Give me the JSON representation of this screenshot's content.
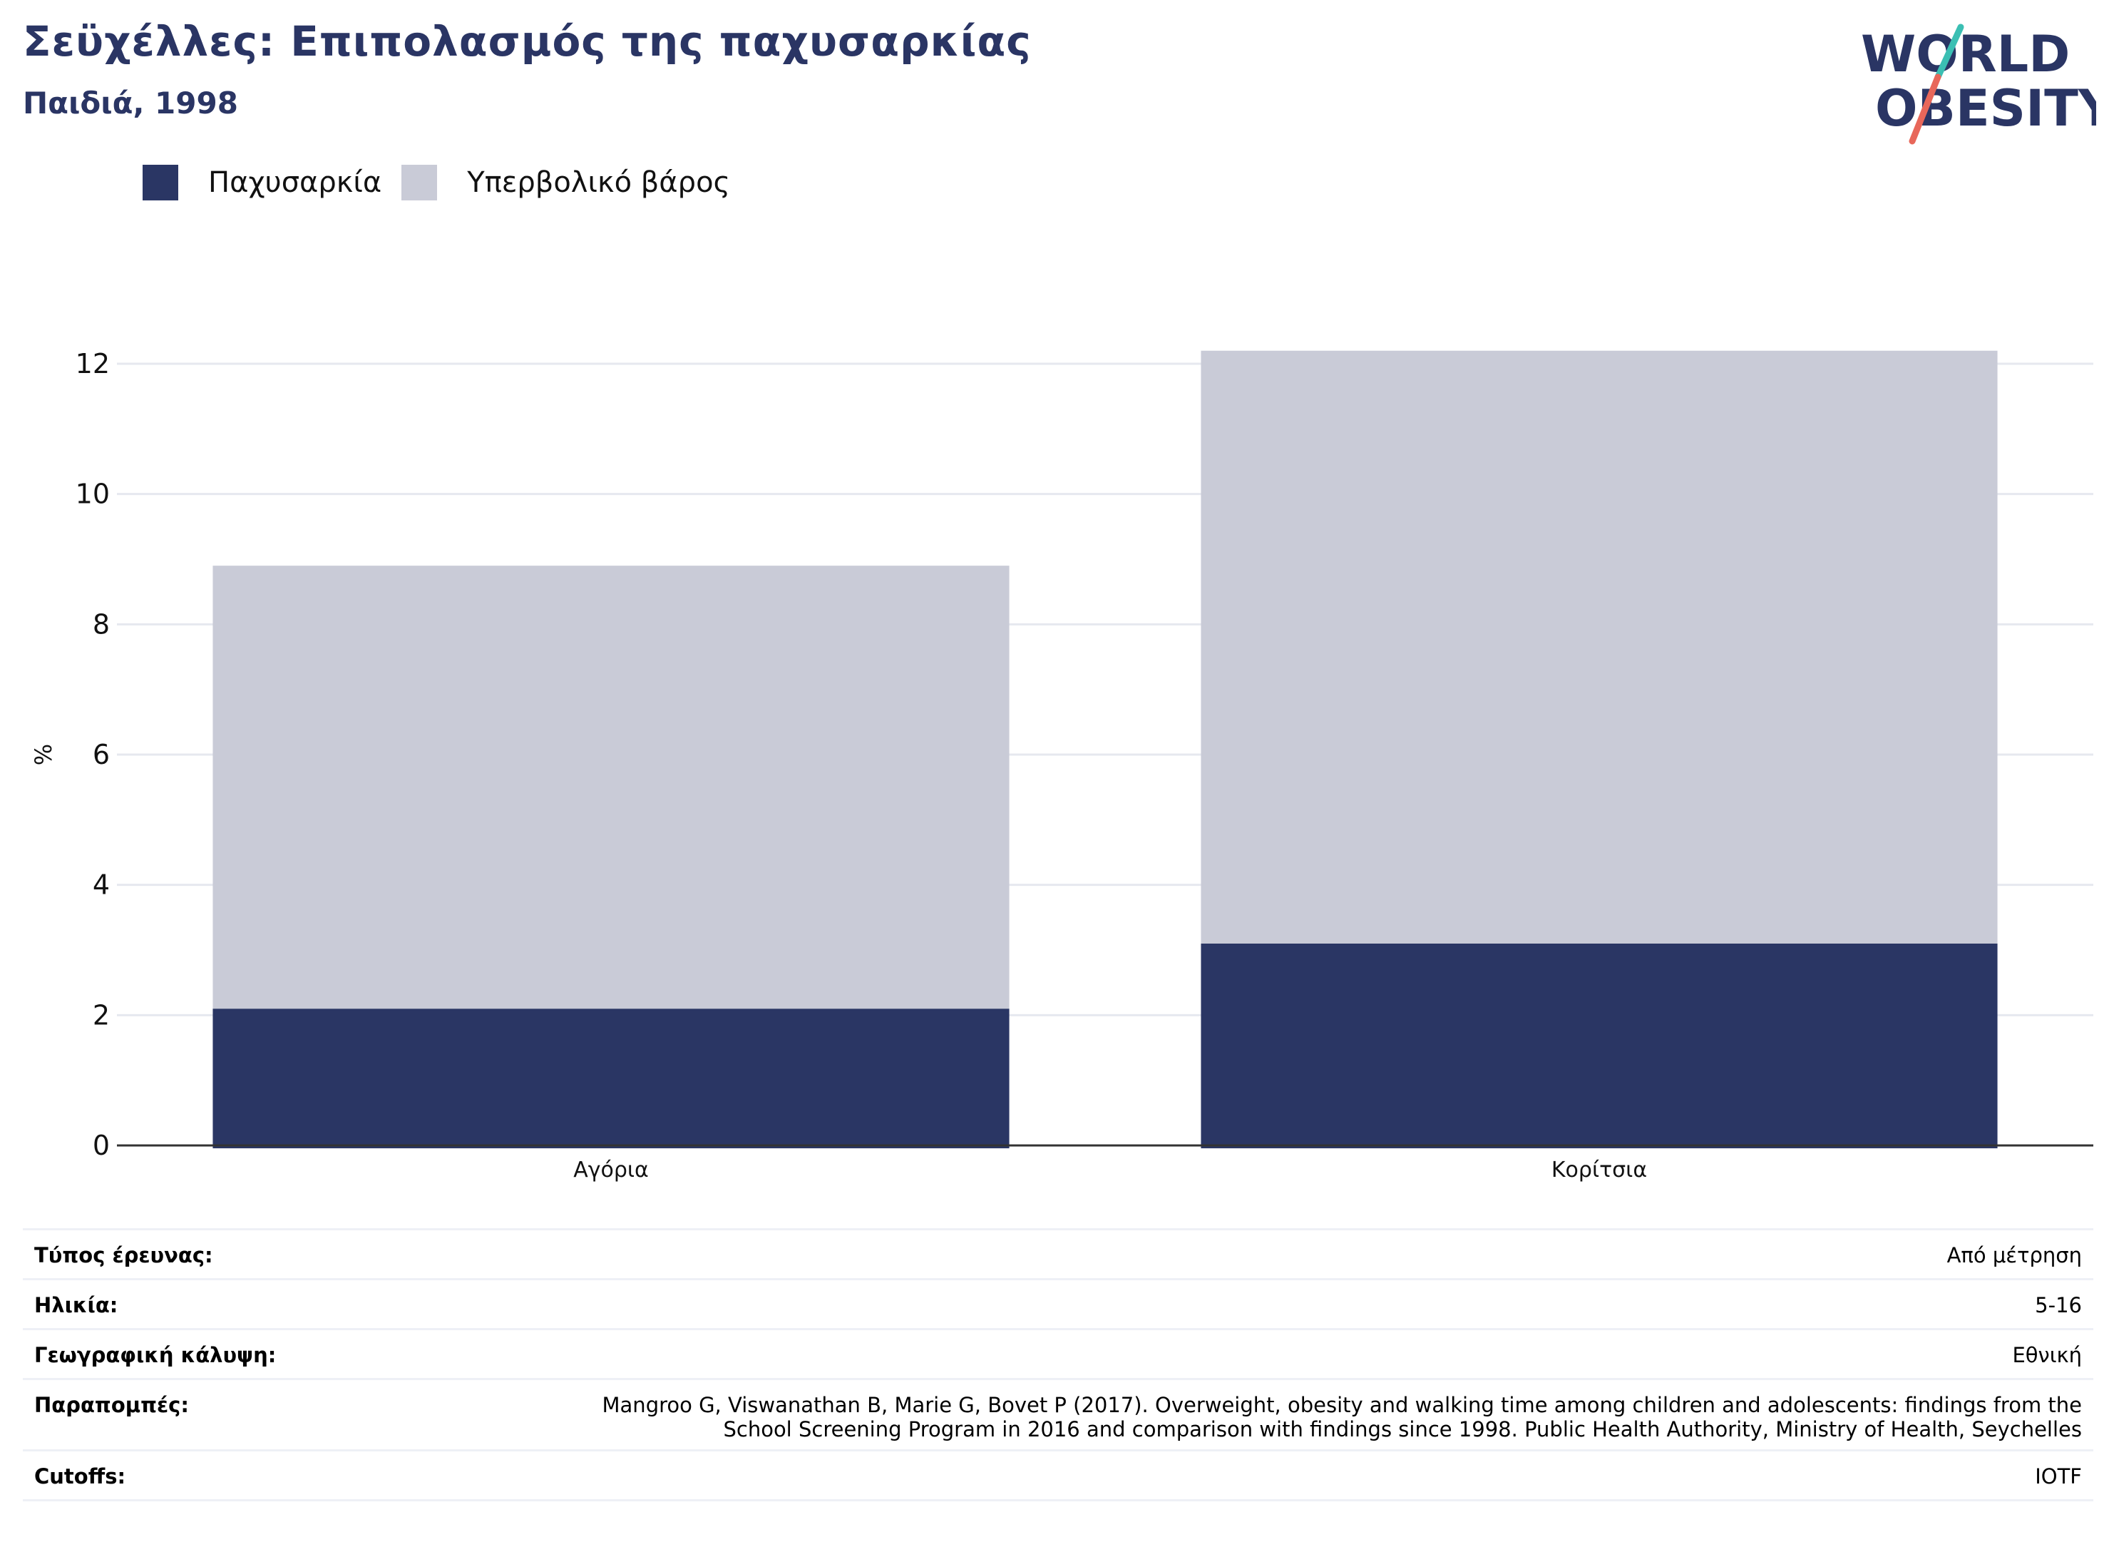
{
  "header": {
    "title": "Σεϋχέλλες: Επιπολασμός της παχυσαρκίας",
    "subtitle": "Παιδιά, 1998"
  },
  "logo": {
    "line1": "WORLD",
    "line2": "OBESITY",
    "colors": {
      "text": "#2a3564",
      "slash_top": "#3bbfb3",
      "slash_bottom": "#e8675a"
    }
  },
  "legend": [
    {
      "label": "Παχυσαρκία",
      "color": "#2a3664"
    },
    {
      "label": "Υπερβολικό βάρος",
      "color": "#c9cbd7"
    }
  ],
  "chart_data": {
    "type": "bar",
    "stacked": true,
    "categories": [
      "Αγόρια",
      "Κορίτσια"
    ],
    "series": [
      {
        "name": "Παχυσαρκία",
        "values": [
          2.1,
          3.1
        ],
        "color": "#2a3664"
      },
      {
        "name": "Υπερβολικό βάρος",
        "values": [
          6.8,
          9.1
        ],
        "color": "#c9cbd7"
      }
    ],
    "ylabel": "%",
    "ylim": [
      0,
      12
    ],
    "yticks": [
      0,
      2,
      4,
      6,
      8,
      10,
      12
    ],
    "grid": true,
    "legend_position": "top-left"
  },
  "info": [
    {
      "key": "Τύπος έρευνας:",
      "value": "Από μέτρηση"
    },
    {
      "key": "Ηλικία:",
      "value": "5-16"
    },
    {
      "key": "Γεωγραφική κάλυψη:",
      "value": "Εθνική"
    },
    {
      "key": "Παραπομπές:",
      "value": "Mangroo G, Viswanathan B, Marie G, Bovet P (2017). Overweight, obesity and walking time among children and adolescents: findings from the School Screening Program in 2016 and comparison with findings since 1998. Public Health Authority, Ministry of Health, Seychelles"
    },
    {
      "key": "Cutoffs:",
      "value": "IOTF"
    }
  ]
}
